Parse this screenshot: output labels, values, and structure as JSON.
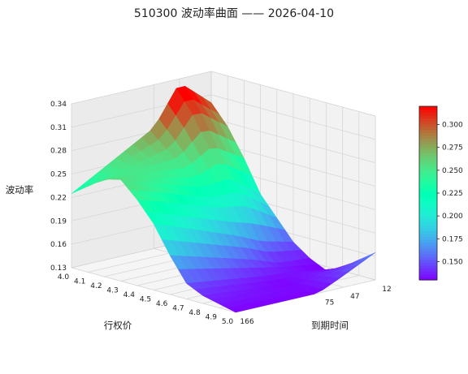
{
  "chart_data": {
    "type": "surface3d",
    "title": "510300 波动率曲面 —— 2026-04-10",
    "xlabel": "行权价",
    "ylabel": "到期时间",
    "zlabel": "波动率",
    "strikes": [
      4.0,
      4.1,
      4.2,
      4.3,
      4.4,
      4.5,
      4.6,
      4.7,
      4.8,
      4.9,
      5.0
    ],
    "expiries": [
      12,
      47,
      75,
      166
    ],
    "x_ticks": [
      "4.0",
      "4.1",
      "4.2",
      "4.3",
      "4.4",
      "4.5",
      "4.6",
      "4.7",
      "4.8",
      "4.9",
      "5.0"
    ],
    "y_ticks": [
      "12",
      "47",
      "75",
      "166"
    ],
    "z_ticks": [
      "0.13",
      "0.16",
      "0.19",
      "0.22",
      "0.25",
      "0.28",
      "0.31",
      "0.34"
    ],
    "zlim": [
      0.13,
      0.34
    ],
    "colorbar": {
      "colormap": "rainbow",
      "range": [
        0.13,
        0.32
      ],
      "ticks": [
        "0.150",
        "0.175",
        "0.200",
        "0.225",
        "0.250",
        "0.275",
        "0.300"
      ]
    },
    "iv": [
      [
        0.3,
        0.275,
        0.24,
        0.2,
        0.175,
        0.15,
        0.135,
        0.125,
        0.135,
        0.15,
        0.165
      ],
      [
        0.335,
        0.305,
        0.265,
        0.23,
        0.2,
        0.16,
        0.138,
        0.134,
        0.136,
        0.14,
        0.145
      ],
      [
        0.285,
        0.265,
        0.245,
        0.225,
        0.205,
        0.175,
        0.15,
        0.135,
        0.13,
        0.132,
        0.13
      ],
      [
        0.225,
        0.24,
        0.255,
        0.26,
        0.24,
        0.215,
        0.18,
        0.15,
        0.14,
        0.135,
        0.13
      ]
    ]
  }
}
